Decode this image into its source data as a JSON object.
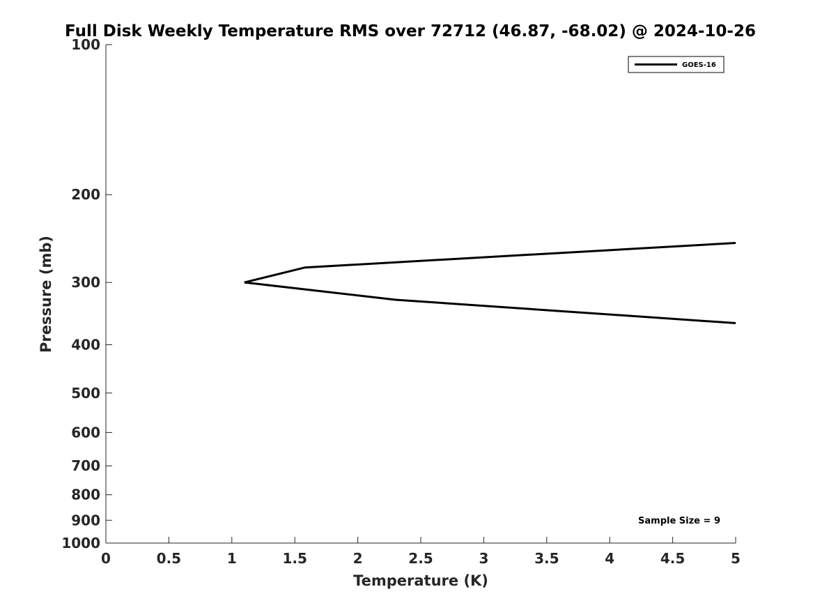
{
  "chart_data": {
    "type": "line",
    "title": "Full Disk Weekly Temperature RMS over 72712 (46.87, -68.02) @ 2024-10-26",
    "xlabel": "Temperature (K)",
    "ylabel": "Pressure (mb)",
    "xlim": [
      0,
      5
    ],
    "ylim": [
      100,
      1000
    ],
    "y_scale": "log",
    "y_reversed": true,
    "grid": false,
    "legend_position": "top-right",
    "x_ticks": [
      0,
      0.5,
      1,
      1.5,
      2,
      2.5,
      3,
      3.5,
      4,
      4.5,
      5
    ],
    "x_tick_labels": [
      "0",
      "0.5",
      "1",
      "1.5",
      "2",
      "2.5",
      "3",
      "3.5",
      "4",
      "4.5",
      "5"
    ],
    "y_ticks": [
      100,
      200,
      300,
      400,
      500,
      600,
      700,
      800,
      900,
      1000
    ],
    "y_tick_labels": [
      "100",
      "200",
      "300",
      "400",
      "500",
      "600",
      "700",
      "800",
      "900",
      "1000"
    ],
    "series": [
      {
        "name": "GOES-16",
        "color": "#000000",
        "points": [
          {
            "x": 5.0,
            "y": 250
          },
          {
            "x": 1.58,
            "y": 280
          },
          {
            "x": 1.1,
            "y": 300
          },
          {
            "x": 2.3,
            "y": 325
          },
          {
            "x": 5.0,
            "y": 362
          }
        ]
      }
    ],
    "annotations": [
      "Sample Size = 9"
    ]
  }
}
